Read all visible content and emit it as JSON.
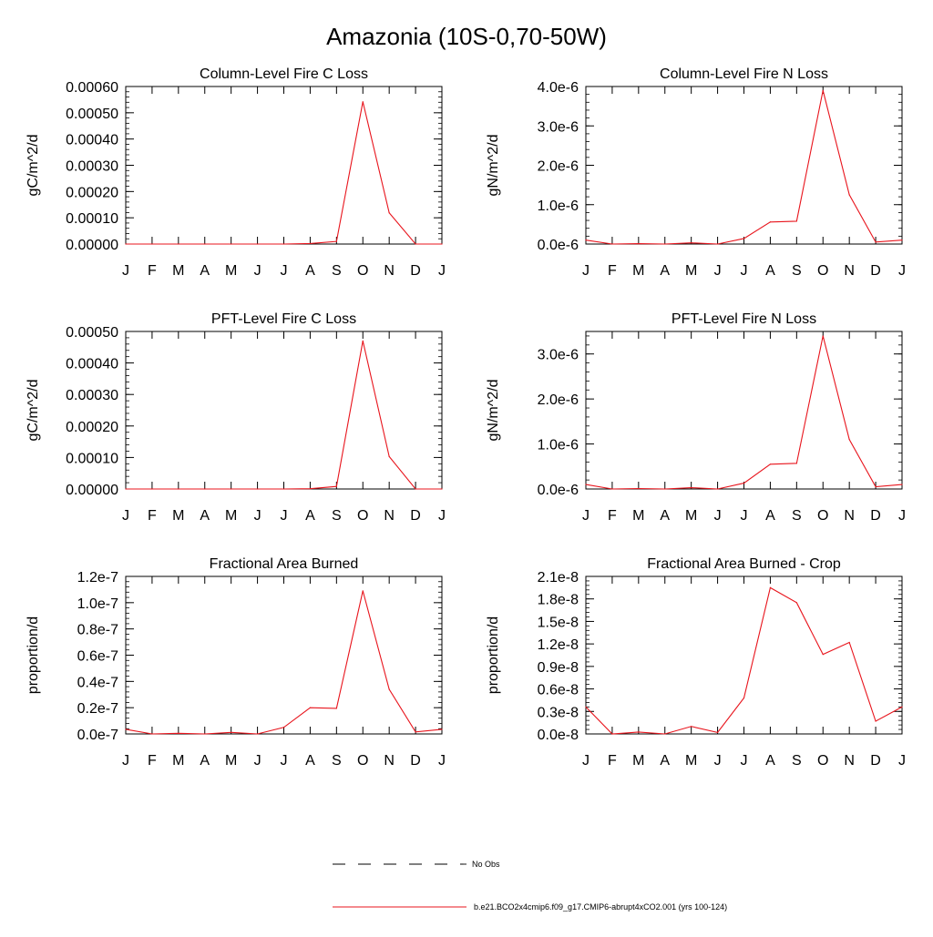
{
  "page_title": "Amazonia (10S-0,70-50W)",
  "line_color": "#e8141c",
  "legend": {
    "obs_label": "No Obs",
    "model_label": "b.e21.BCO2x4cmip6.f09_g17.CMIP6-abrupt4xCO2.001 (yrs 100-124)"
  },
  "chart_data": [
    {
      "type": "line",
      "title": "Column-Level Fire C Loss",
      "xlabel": "",
      "ylabel": "gC/m^2/d",
      "categories": [
        "J",
        "F",
        "M",
        "A",
        "M",
        "J",
        "J",
        "A",
        "S",
        "O",
        "N",
        "D",
        "J"
      ],
      "ylim": [
        0,
        0.0006
      ],
      "yticks": [
        0,
        0.0001,
        0.0002,
        0.0003,
        0.0004,
        0.0005,
        0.0006
      ],
      "ytick_labels": [
        "0.00000",
        "0.00010",
        "0.00020",
        "0.00030",
        "0.00040",
        "0.00050",
        "0.00060"
      ],
      "series": [
        {
          "name": "b.e21.BCO2x4cmip6.f09_g17.CMIP6-abrupt4xCO2.001 (yrs 100-124)",
          "values": [
            0,
            0,
            0,
            0,
            0,
            0,
            0,
            2e-06,
            1e-05,
            0.000542,
            0.000119,
            0,
            0
          ]
        }
      ]
    },
    {
      "type": "line",
      "title": "Column-Level Fire N Loss",
      "xlabel": "",
      "ylabel": "gN/m^2/d",
      "categories": [
        "J",
        "F",
        "M",
        "A",
        "M",
        "J",
        "J",
        "A",
        "S",
        "O",
        "N",
        "D",
        "J"
      ],
      "ylim": [
        0,
        4e-06
      ],
      "yticks": [
        0,
        1e-06,
        2e-06,
        3e-06,
        4e-06
      ],
      "ytick_labels": [
        "0.0e-6",
        "1.0e-6",
        "2.0e-6",
        "3.0e-6",
        "4.0e-6"
      ],
      "series": [
        {
          "name": "b.e21.BCO2x4cmip6.f09_g17.CMIP6-abrupt4xCO2.001 (yrs 100-124)",
          "values": [
            1e-07,
            0,
            1e-08,
            0,
            3e-08,
            0,
            1.4e-07,
            5.6e-07,
            5.8e-07,
            3.9e-06,
            1.25e-06,
            5e-08,
            1e-07
          ]
        }
      ]
    },
    {
      "type": "line",
      "title": "PFT-Level Fire C Loss",
      "xlabel": "",
      "ylabel": "gC/m^2/d",
      "categories": [
        "J",
        "F",
        "M",
        "A",
        "M",
        "J",
        "J",
        "A",
        "S",
        "O",
        "N",
        "D",
        "J"
      ],
      "ylim": [
        0,
        0.0005
      ],
      "yticks": [
        0,
        0.0001,
        0.0002,
        0.0003,
        0.0004,
        0.0005
      ],
      "ytick_labels": [
        "0.00000",
        "0.00010",
        "0.00020",
        "0.00030",
        "0.00040",
        "0.00050"
      ],
      "series": [
        {
          "name": "b.e21.BCO2x4cmip6.f09_g17.CMIP6-abrupt4xCO2.001 (yrs 100-124)",
          "values": [
            0,
            0,
            0,
            0,
            0,
            0,
            0,
            1e-06,
            8e-06,
            0.00047,
            0.000103,
            0,
            0
          ]
        }
      ]
    },
    {
      "type": "line",
      "title": "PFT-Level Fire N Loss",
      "xlabel": "",
      "ylabel": "gN/m^2/d",
      "categories": [
        "J",
        "F",
        "M",
        "A",
        "M",
        "J",
        "J",
        "A",
        "S",
        "O",
        "N",
        "D",
        "J"
      ],
      "ylim": [
        0,
        3.5e-06
      ],
      "yticks": [
        0,
        1e-06,
        2e-06,
        3e-06
      ],
      "ytick_labels": [
        "0.0e-6",
        "1.0e-6",
        "2.0e-6",
        "3.0e-6"
      ],
      "series": [
        {
          "name": "b.e21.BCO2x4cmip6.f09_g17.CMIP6-abrupt4xCO2.001 (yrs 100-124)",
          "values": [
            1e-07,
            0,
            1e-08,
            0,
            3e-08,
            0,
            1.3e-07,
            5.5e-07,
            5.7e-07,
            3.4e-06,
            1.1e-06,
            5e-08,
            1e-07
          ]
        }
      ]
    },
    {
      "type": "line",
      "title": "Fractional Area Burned",
      "xlabel": "",
      "ylabel": "proportion/d",
      "categories": [
        "J",
        "F",
        "M",
        "A",
        "M",
        "J",
        "J",
        "A",
        "S",
        "O",
        "N",
        "D",
        "J"
      ],
      "ylim": [
        0,
        1.2e-07
      ],
      "yticks": [
        0,
        2e-08,
        4e-08,
        6e-08,
        8e-08,
        1e-07,
        1.2e-07
      ],
      "ytick_labels": [
        "0.0e-7",
        "0.2e-7",
        "0.4e-7",
        "0.6e-7",
        "0.8e-7",
        "1.0e-7",
        "1.2e-7"
      ],
      "series": [
        {
          "name": "b.e21.BCO2x4cmip6.f09_g17.CMIP6-abrupt4xCO2.001 (yrs 100-124)",
          "values": [
            3.5e-09,
            0,
            5e-10,
            0,
            1.2e-09,
            0,
            5e-09,
            2e-08,
            1.95e-08,
            1.09e-07,
            3.4e-08,
            1.5e-09,
            3.5e-09
          ]
        }
      ]
    },
    {
      "type": "line",
      "title": "Fractional Area Burned - Crop",
      "xlabel": "",
      "ylabel": "proportion/d",
      "categories": [
        "J",
        "F",
        "M",
        "A",
        "M",
        "J",
        "J",
        "A",
        "S",
        "O",
        "N",
        "D",
        "J"
      ],
      "ylim": [
        0,
        2.1e-08
      ],
      "yticks": [
        0,
        3e-09,
        6e-09,
        9e-09,
        1.2e-08,
        1.5e-08,
        1.8e-08,
        2.1e-08
      ],
      "ytick_labels": [
        "0.0e-8",
        "0.3e-8",
        "0.6e-8",
        "0.9e-8",
        "1.2e-8",
        "1.5e-8",
        "1.8e-8",
        "2.1e-8"
      ],
      "series": [
        {
          "name": "b.e21.BCO2x4cmip6.f09_g17.CMIP6-abrupt4xCO2.001 (yrs 100-124)",
          "values": [
            3.6e-09,
            0,
            2.5e-10,
            0,
            1e-09,
            2e-10,
            4.8e-09,
            1.95e-08,
            1.75e-08,
            1.06e-08,
            1.22e-08,
            1.7e-09,
            3.6e-09
          ]
        }
      ]
    }
  ]
}
